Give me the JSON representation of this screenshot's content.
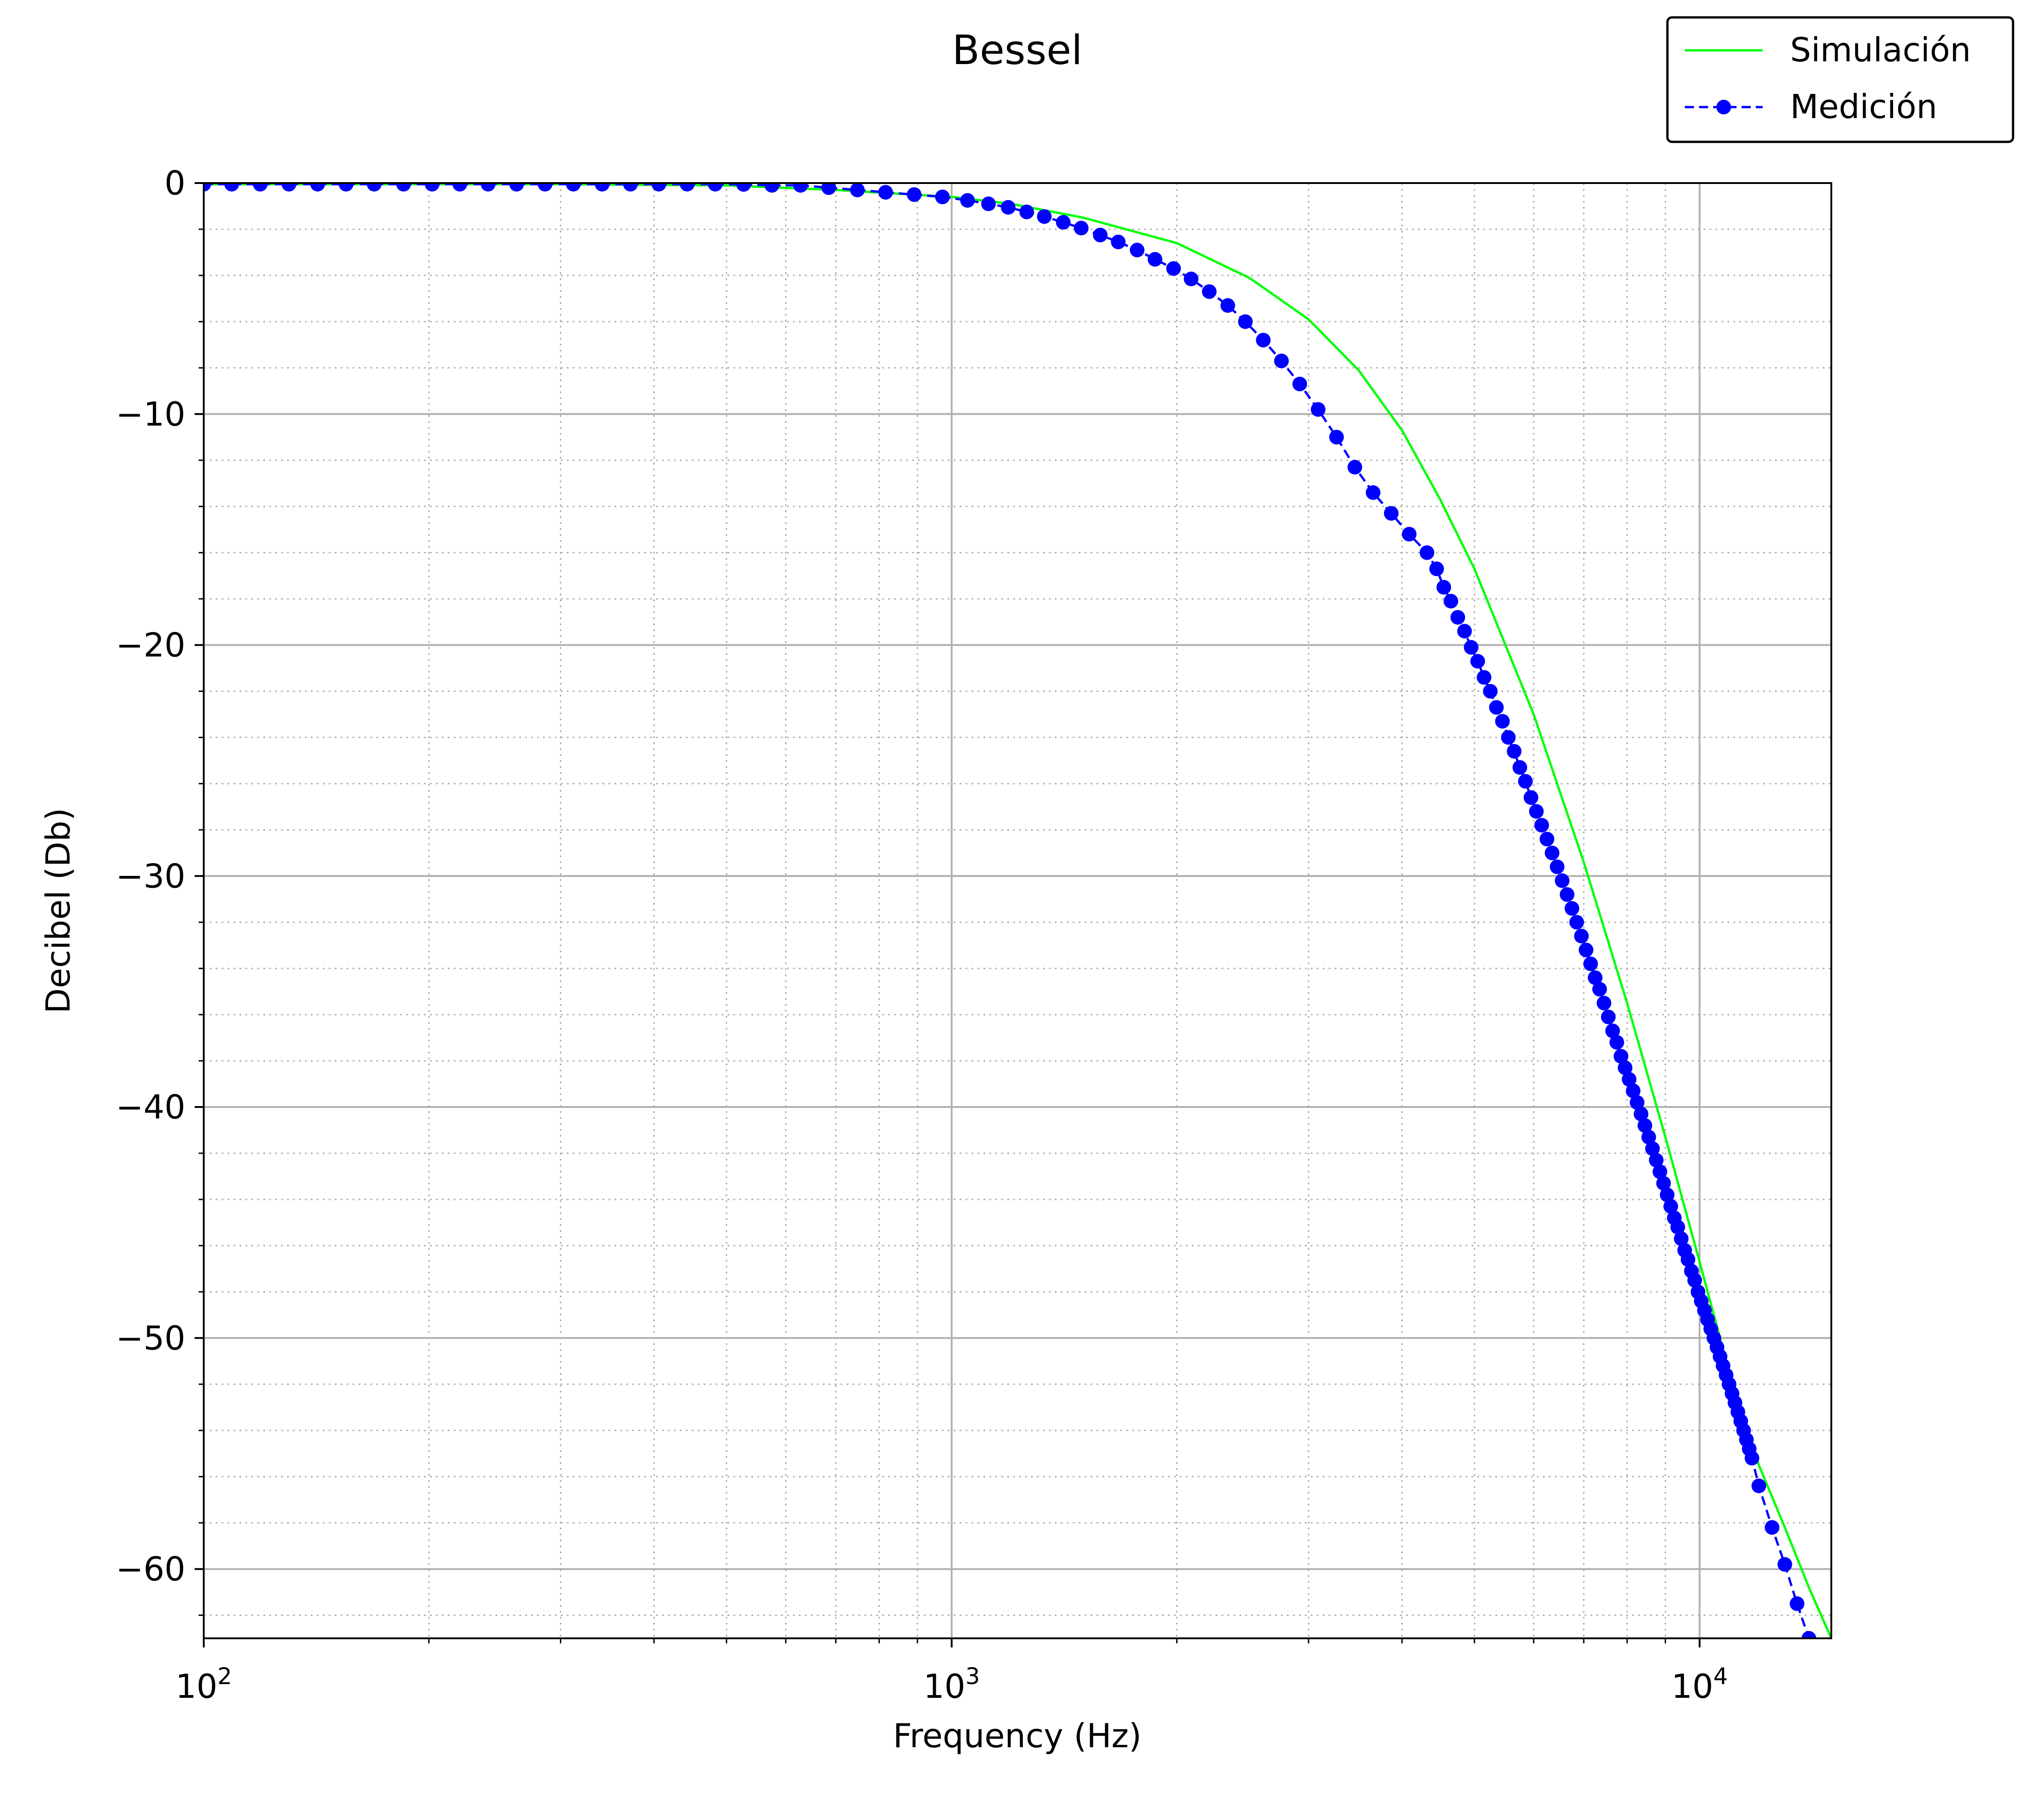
{
  "chart_data": {
    "type": "line",
    "title": "Bessel",
    "xlabel": "Frequency (Hz)",
    "ylabel": "Decibel (Db)",
    "xscale": "log",
    "xlim": [
      100,
      15000
    ],
    "ylim": [
      -63,
      0
    ],
    "xticks": [
      {
        "value": 100,
        "base": "10",
        "exp": "2"
      },
      {
        "value": 1000,
        "base": "10",
        "exp": "3"
      },
      {
        "value": 10000,
        "base": "10",
        "exp": "4"
      }
    ],
    "yticks": [
      {
        "value": 0,
        "label": "0"
      },
      {
        "value": -10,
        "label": "−10"
      },
      {
        "value": -20,
        "label": "−20"
      },
      {
        "value": -30,
        "label": "−30"
      },
      {
        "value": -40,
        "label": "−40"
      },
      {
        "value": -50,
        "label": "−50"
      },
      {
        "value": -60,
        "label": "−60"
      }
    ],
    "grid": {
      "major": true,
      "minor": true
    },
    "legend": {
      "position": "top-right, outside plot"
    },
    "series": [
      {
        "name": "Simulación",
        "color": "#00ff00",
        "style": "solid",
        "marker": "none",
        "x": [
          100,
          200,
          300,
          500,
          700,
          1000,
          1200,
          1500,
          2000,
          2500,
          3000,
          3500,
          4000,
          4500,
          5000,
          6000,
          7000,
          8000,
          9000,
          10000,
          11000,
          12000,
          13000,
          14000,
          15000
        ],
        "y": [
          -0.05,
          -0.05,
          -0.05,
          -0.1,
          -0.3,
          -0.6,
          -0.9,
          -1.5,
          -2.6,
          -4.1,
          -5.9,
          -8.1,
          -10.7,
          -13.7,
          -16.7,
          -23.0,
          -29.4,
          -35.5,
          -41.3,
          -46.7,
          -51.7,
          -55.5,
          -58.2,
          -60.8,
          -63.0
        ]
      },
      {
        "name": "Medición",
        "color": "#0000ff",
        "style": "dashed",
        "marker": "circle",
        "x": [
          100,
          109,
          119,
          130,
          142,
          155,
          169,
          185,
          202,
          220,
          240,
          262,
          286,
          312,
          341,
          372,
          406,
          443,
          483,
          527,
          575,
          628,
          685,
          748,
          816,
          891,
          972,
          1050,
          1120,
          1190,
          1260,
          1330,
          1410,
          1490,
          1580,
          1670,
          1770,
          1870,
          1980,
          2090,
          2210,
          2340,
          2470,
          2610,
          2760,
          2920,
          3090,
          3270,
          3460,
          3660,
          3870,
          4090,
          4320,
          4450,
          4550,
          4650,
          4750,
          4850,
          4950,
          5050,
          5150,
          5250,
          5350,
          5450,
          5550,
          5650,
          5750,
          5850,
          5950,
          6050,
          6150,
          6250,
          6350,
          6450,
          6550,
          6650,
          6750,
          6850,
          6950,
          7050,
          7150,
          7250,
          7350,
          7450,
          7550,
          7650,
          7750,
          7850,
          7950,
          8050,
          8150,
          8250,
          8350,
          8450,
          8550,
          8650,
          8750,
          8850,
          8950,
          9050,
          9150,
          9250,
          9350,
          9450,
          9550,
          9650,
          9750,
          9850,
          9950,
          10050,
          10150,
          10250,
          10350,
          10450,
          10550,
          10650,
          10750,
          10850,
          10950,
          11050,
          11150,
          11250,
          11350,
          11450,
          11550,
          11650,
          11750,
          12000,
          12500,
          13000,
          13500,
          14000
        ],
        "y": [
          -0.05,
          -0.05,
          -0.05,
          -0.05,
          -0.05,
          -0.05,
          -0.05,
          -0.05,
          -0.05,
          -0.05,
          -0.05,
          -0.05,
          -0.05,
          -0.05,
          -0.05,
          -0.05,
          -0.05,
          -0.05,
          -0.05,
          -0.06,
          -0.1,
          -0.1,
          -0.2,
          -0.3,
          -0.4,
          -0.5,
          -0.6,
          -0.75,
          -0.9,
          -1.05,
          -1.25,
          -1.45,
          -1.7,
          -1.95,
          -2.25,
          -2.55,
          -2.9,
          -3.3,
          -3.7,
          -4.15,
          -4.7,
          -5.3,
          -6.0,
          -6.8,
          -7.7,
          -8.7,
          -9.8,
          -11.0,
          -12.3,
          -13.4,
          -14.3,
          -15.2,
          -16.0,
          -16.7,
          -17.5,
          -18.1,
          -18.8,
          -19.4,
          -20.1,
          -20.7,
          -21.4,
          -22.0,
          -22.7,
          -23.3,
          -24.0,
          -24.6,
          -25.3,
          -25.9,
          -26.6,
          -27.2,
          -27.8,
          -28.4,
          -29.0,
          -29.6,
          -30.2,
          -30.8,
          -31.4,
          -32.0,
          -32.6,
          -33.2,
          -33.8,
          -34.4,
          -34.9,
          -35.5,
          -36.1,
          -36.7,
          -37.2,
          -37.8,
          -38.3,
          -38.8,
          -39.3,
          -39.8,
          -40.3,
          -40.8,
          -41.3,
          -41.8,
          -42.3,
          -42.8,
          -43.3,
          -43.8,
          -44.3,
          -44.8,
          -45.2,
          -45.7,
          -46.2,
          -46.6,
          -47.1,
          -47.5,
          -48.0,
          -48.4,
          -48.8,
          -49.2,
          -49.6,
          -50.0,
          -50.4,
          -50.8,
          -51.2,
          -51.6,
          -52.0,
          -52.4,
          -52.8,
          -53.2,
          -53.6,
          -54.0,
          -54.4,
          -54.8,
          -55.2,
          -56.4,
          -58.2,
          -59.8,
          -61.5,
          -63.0
        ]
      }
    ]
  }
}
